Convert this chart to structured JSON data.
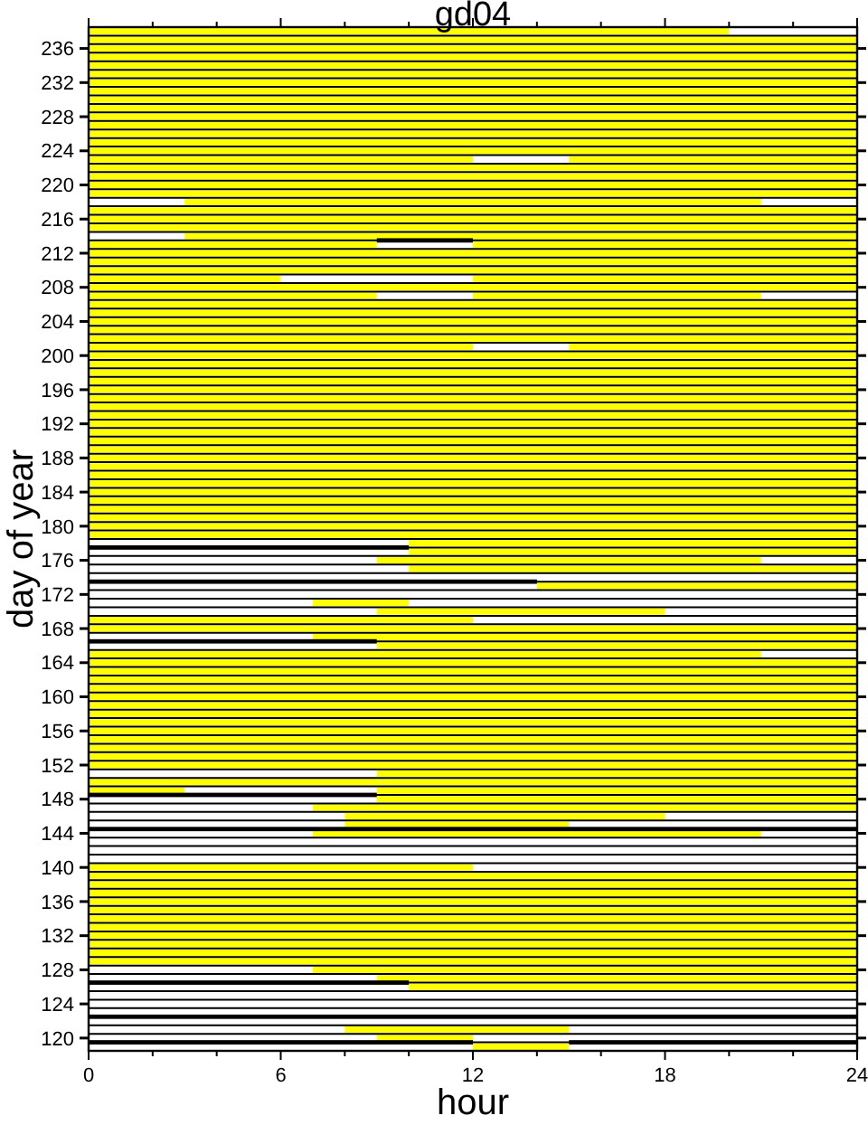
{
  "chart_data": {
    "type": "bar",
    "orientation": "horizontal",
    "title": "gd04",
    "xlabel": "hour",
    "ylabel": "day of year",
    "grid": "y",
    "categories": [
      null,
      null,
      "236",
      null,
      null,
      null,
      "232",
      null,
      null,
      null,
      "228",
      null,
      null,
      null,
      "224",
      null,
      null,
      null,
      "220",
      null,
      null,
      null,
      "216",
      null,
      null,
      null,
      "212",
      null,
      null,
      null,
      "208",
      null,
      null,
      null,
      "204",
      null,
      null,
      null,
      "200",
      null,
      null,
      null,
      "196",
      null,
      null,
      null,
      "192",
      null,
      null,
      null,
      "188",
      null,
      null,
      null,
      "184",
      null,
      null,
      null,
      "180",
      null,
      null,
      null,
      "176",
      null,
      null,
      null,
      "172",
      null,
      null,
      null,
      "168",
      null,
      null,
      null,
      "164",
      null,
      null,
      null,
      "160",
      null,
      null,
      null,
      "156",
      null,
      null,
      null,
      "152",
      null,
      null,
      null,
      "148",
      null,
      null,
      null,
      "144",
      null,
      null,
      null,
      "140",
      null,
      null,
      null,
      "136",
      null,
      null,
      null,
      "132",
      null,
      null,
      null,
      "128",
      null,
      null,
      null,
      "124",
      null,
      null,
      null,
      "120",
      null
    ],
    "xlim": [
      0,
      24
    ],
    "xticks": [
      0,
      {
        "value": 2,
        "label": null
      },
      {
        "value": 4,
        "label": null
      },
      6,
      {
        "value": 8,
        "label": null
      },
      {
        "value": 10,
        "label": null
      },
      12,
      {
        "value": 14,
        "label": null
      },
      {
        "value": 16,
        "label": null
      },
      18,
      {
        "value": 20,
        "label": null
      },
      {
        "value": 22,
        "label": null
      },
      24
    ],
    "series": [
      {
        "color": "#ffff00",
        "base": [
          0,
          0,
          0,
          0,
          0,
          0,
          0,
          0,
          0,
          0,
          0,
          0,
          0,
          0,
          0,
          0,
          0,
          0,
          0,
          0,
          3,
          0,
          0,
          0,
          3,
          0,
          0,
          0,
          0,
          0,
          0,
          0,
          0,
          0,
          0,
          0,
          0,
          0,
          0,
          0,
          0,
          0,
          0,
          0,
          0,
          0,
          0,
          0,
          0,
          0,
          0,
          0,
          0,
          0,
          0,
          0,
          0,
          0,
          0,
          0,
          10,
          10,
          9,
          10,
          null,
          14,
          null,
          7,
          9,
          0,
          0,
          7,
          9,
          0,
          0,
          0,
          0,
          0,
          0,
          0,
          0,
          0,
          0,
          0,
          0,
          0,
          0,
          9,
          0,
          0,
          9,
          7,
          8,
          8,
          7,
          null,
          null,
          null,
          0,
          0,
          0,
          0,
          0,
          0,
          0,
          0,
          0,
          0,
          0,
          0,
          7,
          9,
          10,
          null,
          null,
          null,
          null,
          8,
          9,
          12
        ],
        "values": [
          20,
          24,
          24,
          24,
          24,
          24,
          24,
          24,
          24,
          24,
          24,
          24,
          24,
          24,
          24,
          12,
          24,
          24,
          24,
          24,
          18,
          24,
          24,
          24,
          21,
          9,
          24,
          24,
          24,
          6,
          24,
          9,
          24,
          24,
          24,
          24,
          24,
          12,
          24,
          24,
          24,
          24,
          24,
          24,
          24,
          24,
          24,
          24,
          24,
          24,
          24,
          24,
          24,
          24,
          24,
          24,
          24,
          24,
          24,
          24,
          14,
          14,
          12,
          14,
          null,
          10,
          null,
          3,
          9,
          12,
          24,
          17,
          15,
          21,
          24,
          24,
          24,
          24,
          24,
          24,
          24,
          24,
          24,
          24,
          24,
          24,
          24,
          15,
          24,
          3,
          15,
          17,
          10,
          7,
          14,
          null,
          null,
          null,
          12,
          24,
          24,
          24,
          24,
          24,
          24,
          24,
          24,
          24,
          24,
          24,
          17,
          15,
          14,
          null,
          null,
          null,
          null,
          7,
          3,
          3
        ]
      },
      {
        "color": "#ffff00",
        "base": [
          null,
          null,
          null,
          null,
          null,
          null,
          null,
          null,
          null,
          null,
          null,
          null,
          null,
          null,
          null,
          15,
          null,
          null,
          null,
          null,
          null,
          null,
          null,
          null,
          null,
          12,
          null,
          null,
          null,
          12,
          null,
          12,
          null,
          null,
          null,
          null,
          null,
          15,
          null,
          null,
          null,
          null,
          null,
          null,
          null,
          null,
          null,
          null,
          null,
          null,
          null,
          null,
          null,
          null,
          null,
          null,
          null,
          null,
          null,
          null,
          null,
          null,
          null,
          null,
          null,
          null,
          null,
          null,
          null,
          null,
          null,
          null,
          null,
          null,
          null,
          null,
          null,
          null,
          null,
          null,
          null,
          null,
          null,
          null,
          null,
          null,
          null,
          null,
          null,
          9,
          null,
          null,
          null,
          null,
          null,
          null,
          null,
          null,
          null,
          null,
          null,
          null,
          null,
          null,
          null,
          null,
          null,
          null,
          null,
          null,
          null,
          null,
          null,
          null,
          null,
          null,
          null,
          null,
          null,
          null
        ],
        "values": [
          null,
          null,
          null,
          null,
          null,
          null,
          null,
          null,
          null,
          null,
          null,
          null,
          null,
          null,
          null,
          9,
          null,
          null,
          null,
          null,
          null,
          null,
          null,
          null,
          null,
          12,
          null,
          null,
          null,
          12,
          null,
          9,
          null,
          null,
          null,
          null,
          null,
          9,
          null,
          null,
          null,
          null,
          null,
          null,
          null,
          null,
          null,
          null,
          null,
          null,
          null,
          null,
          null,
          null,
          null,
          null,
          null,
          null,
          null,
          null,
          null,
          null,
          null,
          null,
          null,
          null,
          null,
          null,
          null,
          null,
          null,
          null,
          null,
          null,
          null,
          null,
          null,
          null,
          null,
          null,
          null,
          null,
          null,
          null,
          null,
          null,
          null,
          null,
          null,
          15,
          null,
          null,
          null,
          null,
          null,
          null,
          null,
          null,
          null,
          null,
          null,
          null,
          null,
          null,
          null,
          null,
          null,
          null,
          null,
          null,
          null,
          null,
          null,
          null,
          null,
          null,
          null,
          null,
          null,
          null
        ]
      },
      {
        "color": "#000000",
        "line_style": "solid",
        "base": [
          null,
          null,
          null,
          null,
          null,
          null,
          null,
          null,
          null,
          null,
          null,
          null,
          null,
          null,
          null,
          null,
          null,
          null,
          null,
          null,
          null,
          null,
          null,
          null,
          null,
          9,
          null,
          null,
          null,
          null,
          null,
          null,
          null,
          null,
          null,
          null,
          null,
          null,
          null,
          null,
          null,
          null,
          null,
          null,
          null,
          null,
          null,
          null,
          null,
          null,
          null,
          null,
          null,
          null,
          null,
          null,
          null,
          null,
          null,
          null,
          null,
          0,
          null,
          null,
          null,
          0,
          null,
          null,
          null,
          null,
          null,
          null,
          0,
          null,
          null,
          null,
          null,
          null,
          null,
          null,
          null,
          null,
          null,
          null,
          null,
          null,
          null,
          null,
          null,
          null,
          0,
          null,
          null,
          null,
          0,
          null,
          null,
          null,
          null,
          null,
          null,
          null,
          null,
          null,
          null,
          null,
          null,
          null,
          null,
          null,
          null,
          null,
          0,
          null,
          null,
          null,
          0,
          null,
          null,
          0
        ],
        "values": [
          null,
          null,
          null,
          null,
          null,
          null,
          null,
          null,
          null,
          null,
          null,
          null,
          null,
          null,
          null,
          null,
          null,
          null,
          null,
          null,
          null,
          null,
          null,
          null,
          null,
          3,
          null,
          null,
          null,
          null,
          null,
          null,
          null,
          null,
          null,
          null,
          null,
          null,
          null,
          null,
          null,
          null,
          null,
          null,
          null,
          null,
          null,
          null,
          null,
          null,
          null,
          null,
          null,
          null,
          null,
          null,
          null,
          null,
          null,
          null,
          null,
          10,
          null,
          null,
          null,
          14,
          null,
          null,
          null,
          null,
          null,
          null,
          9,
          null,
          null,
          null,
          null,
          null,
          null,
          null,
          null,
          null,
          null,
          null,
          null,
          null,
          null,
          null,
          null,
          null,
          9,
          null,
          null,
          null,
          24,
          null,
          null,
          null,
          null,
          null,
          null,
          null,
          null,
          null,
          null,
          null,
          null,
          null,
          null,
          null,
          null,
          null,
          10,
          null,
          null,
          null,
          24,
          null,
          null,
          12
        ]
      },
      {
        "color": "#000000",
        "line_style": "solid",
        "base": [
          null,
          null,
          null,
          null,
          null,
          null,
          null,
          null,
          null,
          null,
          null,
          null,
          null,
          null,
          null,
          null,
          null,
          null,
          null,
          null,
          null,
          null,
          null,
          null,
          null,
          null,
          null,
          null,
          null,
          null,
          null,
          null,
          null,
          null,
          null,
          null,
          null,
          null,
          null,
          null,
          null,
          null,
          null,
          null,
          null,
          null,
          null,
          null,
          null,
          null,
          null,
          null,
          null,
          null,
          null,
          null,
          null,
          null,
          null,
          null,
          null,
          null,
          null,
          null,
          null,
          null,
          null,
          null,
          null,
          null,
          null,
          null,
          null,
          null,
          null,
          null,
          null,
          null,
          null,
          null,
          null,
          null,
          null,
          null,
          null,
          null,
          null,
          null,
          null,
          null,
          null,
          null,
          null,
          null,
          null,
          null,
          null,
          null,
          null,
          null,
          null,
          null,
          null,
          null,
          null,
          null,
          null,
          null,
          null,
          null,
          null,
          null,
          null,
          null,
          null,
          null,
          null,
          null,
          null,
          15
        ],
        "values": [
          null,
          null,
          null,
          null,
          null,
          null,
          null,
          null,
          null,
          null,
          null,
          null,
          null,
          null,
          null,
          null,
          null,
          null,
          null,
          null,
          null,
          null,
          null,
          null,
          null,
          null,
          null,
          null,
          null,
          null,
          null,
          null,
          null,
          null,
          null,
          null,
          null,
          null,
          null,
          null,
          null,
          null,
          null,
          null,
          null,
          null,
          null,
          null,
          null,
          null,
          null,
          null,
          null,
          null,
          null,
          null,
          null,
          null,
          null,
          null,
          null,
          null,
          null,
          null,
          null,
          null,
          null,
          null,
          null,
          null,
          null,
          null,
          null,
          null,
          null,
          null,
          null,
          null,
          null,
          null,
          null,
          null,
          null,
          null,
          null,
          null,
          null,
          null,
          null,
          null,
          null,
          null,
          null,
          null,
          null,
          null,
          null,
          null,
          null,
          null,
          null,
          null,
          null,
          null,
          null,
          null,
          null,
          null,
          null,
          null,
          null,
          null,
          null,
          null,
          null,
          null,
          null,
          null,
          null,
          9
        ]
      }
    ]
  }
}
